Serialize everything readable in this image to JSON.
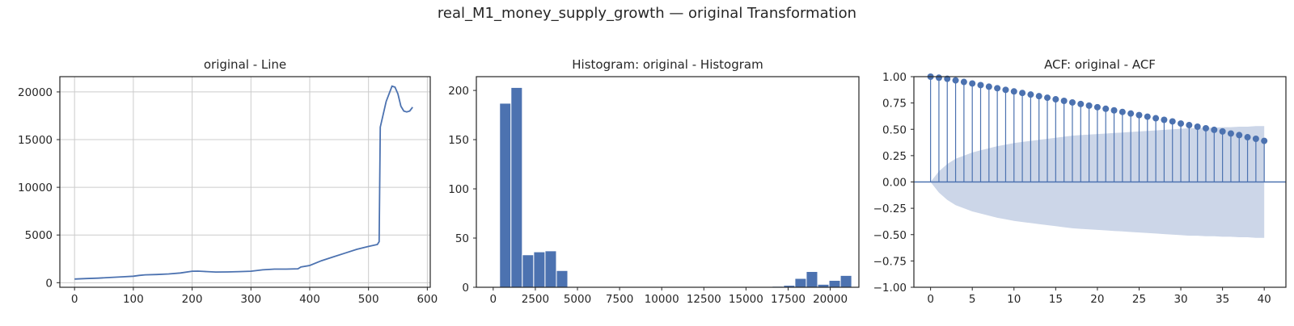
{
  "title": "real_M1_money_supply_growth — original Transformation",
  "chart_data": [
    {
      "type": "line",
      "title": "original - Line",
      "xlabel": "",
      "ylabel": "",
      "xlim": [
        -25,
        605
      ],
      "ylim": [
        -480,
        21600
      ],
      "xticks": [
        0,
        100,
        200,
        300,
        400,
        500,
        600
      ],
      "yticks": [
        0,
        5000,
        10000,
        15000,
        20000
      ],
      "grid": true,
      "color": "#4c72b0",
      "x": [
        0,
        20,
        40,
        60,
        80,
        100,
        110,
        120,
        140,
        160,
        180,
        200,
        210,
        220,
        240,
        260,
        280,
        300,
        320,
        340,
        360,
        380,
        385,
        400,
        420,
        440,
        460,
        480,
        500,
        515,
        518,
        520,
        530,
        540,
        545,
        550,
        555,
        560,
        565,
        570,
        575
      ],
      "y": [
        380,
        430,
        480,
        540,
        610,
        680,
        760,
        820,
        860,
        920,
        1020,
        1200,
        1210,
        1180,
        1120,
        1130,
        1160,
        1200,
        1350,
        1420,
        1420,
        1460,
        1650,
        1800,
        2300,
        2700,
        3100,
        3500,
        3800,
        4000,
        4300,
        16300,
        19000,
        20600,
        20500,
        19800,
        18500,
        18000,
        17900,
        18000,
        18400
      ]
    },
    {
      "type": "bar",
      "title": "Histogram: original - Histogram",
      "xlabel": "",
      "ylabel": "",
      "xlim": [
        -1000,
        21700
      ],
      "ylim": [
        0,
        214
      ],
      "xticks": [
        0,
        2500,
        5000,
        7500,
        10000,
        12500,
        15000,
        17500,
        20000
      ],
      "yticks": [
        0,
        50,
        100,
        150,
        200
      ],
      "grid": false,
      "color": "#4c72b0",
      "bin_start": 380,
      "bin_width": 674,
      "values": [
        187,
        203,
        33,
        36,
        37,
        17,
        0,
        0,
        0,
        0,
        0,
        0,
        0,
        0,
        0,
        0,
        0,
        0,
        0,
        0,
        0,
        0,
        0,
        0,
        1,
        2,
        9,
        16,
        3,
        7,
        12
      ]
    },
    {
      "type": "stem",
      "title": "ACF: original - ACF",
      "xlabel": "",
      "ylabel": "",
      "xlim": [
        -2,
        42.6
      ],
      "ylim": [
        -1.0,
        1.0
      ],
      "xticks": [
        0,
        5,
        10,
        15,
        20,
        25,
        30,
        35,
        40
      ],
      "yticks": [
        -1.0,
        -0.75,
        -0.5,
        -0.25,
        0.0,
        0.25,
        0.5,
        0.75,
        1.0
      ],
      "tick_labels": [
        "−1.00",
        "−0.75",
        "−0.50",
        "−0.25",
        "0.00",
        "0.25",
        "0.50",
        "0.75",
        "1.00"
      ],
      "grid": false,
      "color": "#4c72b0",
      "confidence_color": "#ccd6e8",
      "lags": [
        0,
        1,
        2,
        3,
        4,
        5,
        6,
        7,
        8,
        9,
        10,
        11,
        12,
        13,
        14,
        15,
        16,
        17,
        18,
        19,
        20,
        21,
        22,
        23,
        24,
        25,
        26,
        27,
        28,
        29,
        30,
        31,
        32,
        33,
        34,
        35,
        36,
        37,
        38,
        39,
        40
      ],
      "values": [
        1.0,
        0.99,
        0.98,
        0.965,
        0.95,
        0.935,
        0.92,
        0.905,
        0.89,
        0.875,
        0.86,
        0.845,
        0.83,
        0.815,
        0.8,
        0.785,
        0.77,
        0.755,
        0.74,
        0.725,
        0.71,
        0.695,
        0.68,
        0.665,
        0.65,
        0.635,
        0.62,
        0.605,
        0.59,
        0.575,
        0.555,
        0.54,
        0.525,
        0.51,
        0.495,
        0.48,
        0.46,
        0.445,
        0.425,
        0.41,
        0.39
      ],
      "confidence_upper": [
        0.0,
        0.1,
        0.17,
        0.22,
        0.25,
        0.28,
        0.3,
        0.32,
        0.34,
        0.355,
        0.37,
        0.38,
        0.39,
        0.4,
        0.41,
        0.42,
        0.43,
        0.44,
        0.445,
        0.45,
        0.455,
        0.46,
        0.465,
        0.47,
        0.475,
        0.48,
        0.485,
        0.49,
        0.495,
        0.5,
        0.505,
        0.51,
        0.51,
        0.515,
        0.515,
        0.52,
        0.52,
        0.525,
        0.525,
        0.53,
        0.53
      ]
    }
  ]
}
